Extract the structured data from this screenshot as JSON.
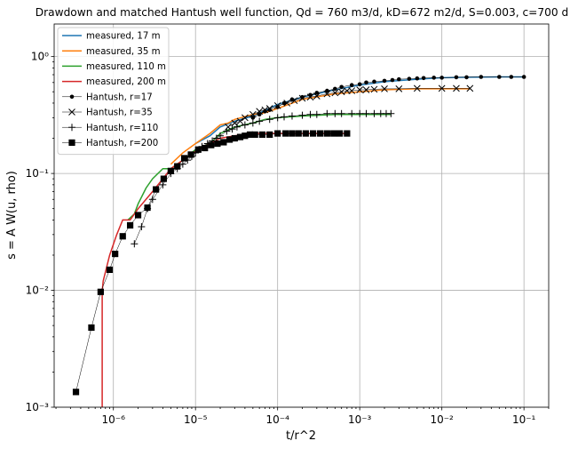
{
  "chart_data": {
    "type": "line",
    "title": "Drawdown and matched Hantush well function, Qd = 760 m3/d, kD=672 m2/d, S=0.003, c=700 d",
    "xlabel": "t/r^2",
    "ylabel": "s = A W(u, rho)",
    "xscale": "log",
    "yscale": "log",
    "xlim": [
      1.9e-07,
      0.2
    ],
    "ylim": [
      0.001,
      1.9
    ],
    "grid": true,
    "legend_position": "upper-left",
    "xticks": [
      {
        "value": 1e-06,
        "label": "10⁻⁶"
      },
      {
        "value": 1e-05,
        "label": "10⁻⁵"
      },
      {
        "value": 0.0001,
        "label": "10⁻⁴"
      },
      {
        "value": 0.001,
        "label": "10⁻³"
      },
      {
        "value": 0.01,
        "label": "10⁻²"
      },
      {
        "value": 0.1,
        "label": "10⁻¹"
      }
    ],
    "yticks": [
      {
        "value": 0.001,
        "label": "10⁻³"
      },
      {
        "value": 0.01,
        "label": "10⁻²"
      },
      {
        "value": 0.1,
        "label": "10⁻¹"
      },
      {
        "value": 1,
        "label": "10⁰"
      }
    ],
    "series": [
      {
        "name": "measured, 17 m",
        "kind": "line",
        "color": "#1f77b4",
        "x": [
          1e-05,
          1.5e-05,
          2e-05,
          3e-05,
          5e-05,
          0.0001,
          0.0002,
          0.0005,
          0.001,
          0.002,
          0.005,
          0.01,
          0.02,
          0.05,
          0.1
        ],
        "y": [
          0.18,
          0.21,
          0.25,
          0.28,
          0.31,
          0.39,
          0.45,
          0.52,
          0.57,
          0.61,
          0.64,
          0.66,
          0.665,
          0.67,
          0.67
        ]
      },
      {
        "name": "measured, 35 m",
        "kind": "line",
        "color": "#ff7f0e",
        "x": [
          5e-06,
          7e-06,
          1e-05,
          1.5e-05,
          2e-05,
          2.5e-05,
          3e-05,
          5e-05,
          7e-05,
          0.0001,
          0.0002,
          0.0005,
          0.001,
          0.002,
          0.005,
          0.01,
          0.022
        ],
        "y": [
          0.12,
          0.15,
          0.18,
          0.22,
          0.26,
          0.27,
          0.29,
          0.32,
          0.33,
          0.36,
          0.43,
          0.48,
          0.5,
          0.52,
          0.53,
          0.53,
          0.53
        ]
      },
      {
        "name": "measured, 110 m",
        "kind": "line",
        "color": "#2ca02c",
        "x": [
          1.5e-06,
          1.8e-06,
          2e-06,
          2.5e-06,
          3e-06,
          4e-06,
          5e-06,
          7e-06,
          1e-05,
          1.5e-05,
          2e-05,
          3e-05,
          5e-05,
          7e-05,
          0.0001,
          0.0002,
          0.0005,
          0.001,
          0.0024
        ],
        "y": [
          0.04,
          0.045,
          0.055,
          0.075,
          0.09,
          0.11,
          0.11,
          0.13,
          0.16,
          0.18,
          0.22,
          0.25,
          0.27,
          0.29,
          0.3,
          0.31,
          0.32,
          0.32,
          0.32
        ]
      },
      {
        "name": "measured, 200 m",
        "kind": "line",
        "color": "#d62728",
        "x": [
          7.3e-07,
          7.3e-07,
          7.5e-07,
          9e-07,
          1.1e-06,
          1.3e-06,
          1.6e-06,
          2e-06,
          3e-06,
          4e-06,
          5e-06,
          7e-06,
          1e-05,
          1.5e-05,
          2e-05,
          3e-05,
          5e-05,
          0.0001,
          0.0002,
          0.0004,
          0.0007
        ],
        "y": [
          0.0009,
          0.0098,
          0.012,
          0.02,
          0.03,
          0.04,
          0.04,
          0.05,
          0.07,
          0.09,
          0.11,
          0.13,
          0.155,
          0.18,
          0.2,
          0.21,
          0.22,
          0.22,
          0.22,
          0.22,
          0.22
        ]
      },
      {
        "name": "Hantush, r=17",
        "kind": "marker",
        "marker": "dot",
        "color": "#000000",
        "x": [
          5e-05,
          6e-05,
          7e-05,
          8e-05,
          0.0001,
          0.00012,
          0.00015,
          0.0002,
          0.00025,
          0.0003,
          0.0004,
          0.0005,
          0.0006,
          0.0008,
          0.001,
          0.0012,
          0.0015,
          0.002,
          0.0025,
          0.003,
          0.004,
          0.005,
          0.006,
          0.008,
          0.01,
          0.015,
          0.02,
          0.03,
          0.05,
          0.07,
          0.1
        ],
        "y": [
          0.3,
          0.32,
          0.34,
          0.35,
          0.37,
          0.4,
          0.43,
          0.45,
          0.47,
          0.49,
          0.51,
          0.53,
          0.55,
          0.57,
          0.58,
          0.6,
          0.61,
          0.62,
          0.63,
          0.64,
          0.645,
          0.65,
          0.655,
          0.66,
          0.66,
          0.665,
          0.665,
          0.67,
          0.67,
          0.67,
          0.67
        ]
      },
      {
        "name": "Hantush, r=35",
        "kind": "marker",
        "marker": "x",
        "color": "#000000",
        "x": [
          2.5e-05,
          3e-05,
          3.5e-05,
          4e-05,
          5e-05,
          6e-05,
          7e-05,
          8e-05,
          0.0001,
          0.00013,
          0.00016,
          0.0002,
          0.00025,
          0.0003,
          0.0004,
          0.0005,
          0.0006,
          0.0007,
          0.0008,
          0.001,
          0.0012,
          0.0015,
          0.002,
          0.003,
          0.005,
          0.01,
          0.015,
          0.022
        ],
        "y": [
          0.25,
          0.27,
          0.28,
          0.3,
          0.32,
          0.34,
          0.35,
          0.36,
          0.38,
          0.4,
          0.42,
          0.44,
          0.45,
          0.46,
          0.48,
          0.49,
          0.5,
          0.51,
          0.51,
          0.52,
          0.52,
          0.525,
          0.53,
          0.53,
          0.535,
          0.535,
          0.535,
          0.535
        ]
      },
      {
        "name": "Hantush, r=110",
        "kind": "marker",
        "marker": "plus",
        "color": "#000000",
        "x": [
          1.8e-06,
          2.2e-06,
          2.6e-06,
          3e-06,
          4e-06,
          5e-06,
          6e-06,
          7e-06,
          8e-06,
          9e-06,
          1e-05,
          1.2e-05,
          1.4e-05,
          1.6e-05,
          1.8e-05,
          2e-05,
          2.4e-05,
          2.8e-05,
          3.2e-05,
          4e-05,
          5e-05,
          6e-05,
          8e-05,
          0.0001,
          0.00012,
          0.00015,
          0.0002,
          0.00025,
          0.0003,
          0.0004,
          0.0005,
          0.0006,
          0.0008,
          0.001,
          0.0012,
          0.0015,
          0.0018,
          0.0021,
          0.0024
        ],
        "y": [
          0.025,
          0.035,
          0.05,
          0.06,
          0.08,
          0.1,
          0.11,
          0.12,
          0.13,
          0.14,
          0.15,
          0.17,
          0.18,
          0.19,
          0.2,
          0.21,
          0.23,
          0.24,
          0.25,
          0.26,
          0.27,
          0.28,
          0.29,
          0.3,
          0.305,
          0.31,
          0.315,
          0.32,
          0.32,
          0.325,
          0.325,
          0.325,
          0.325,
          0.325,
          0.325,
          0.325,
          0.325,
          0.325,
          0.325
        ]
      },
      {
        "name": "Hantush, r=200",
        "kind": "marker",
        "marker": "square",
        "color": "#000000",
        "x": [
          3.5e-07,
          5.4e-07,
          7e-07,
          9e-07,
          1.05e-06,
          1.3e-06,
          1.6e-06,
          2e-06,
          2.6e-06,
          3.3e-06,
          4.1e-06,
          5e-06,
          6e-06,
          7.3e-06,
          8.8e-06,
          1.08e-05,
          1.3e-05,
          1.55e-05,
          1.85e-05,
          2.2e-05,
          2.6e-05,
          3e-05,
          3.5e-05,
          4e-05,
          4.6e-05,
          5.3e-05,
          6.5e-05,
          8e-05,
          0.0001,
          0.000125,
          0.00015,
          0.00018,
          0.00022,
          0.00027,
          0.00033,
          0.0004,
          0.00048,
          0.00057,
          0.0007
        ],
        "y": [
          0.00135,
          0.0048,
          0.0097,
          0.015,
          0.0205,
          0.029,
          0.036,
          0.044,
          0.051,
          0.073,
          0.09,
          0.105,
          0.115,
          0.135,
          0.145,
          0.16,
          0.165,
          0.175,
          0.18,
          0.185,
          0.195,
          0.2,
          0.205,
          0.21,
          0.215,
          0.215,
          0.215,
          0.215,
          0.22,
          0.22,
          0.22,
          0.22,
          0.22,
          0.22,
          0.22,
          0.22,
          0.22,
          0.22,
          0.22
        ]
      }
    ]
  }
}
